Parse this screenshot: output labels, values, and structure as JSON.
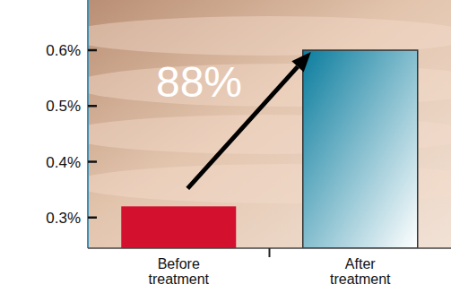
{
  "chart_data": {
    "type": "bar",
    "categories": [
      "Before treatment",
      "After treatment"
    ],
    "values": [
      0.32,
      0.6
    ],
    "colors": [
      "#d4102f",
      "#0b7d9e"
    ],
    "ylim": [
      0.245,
      0.69
    ],
    "yticks": [
      {
        "value": 0.3,
        "label": "0.3%"
      },
      {
        "value": 0.4,
        "label": "0.4%"
      },
      {
        "value": 0.5,
        "label": "0.5%"
      },
      {
        "value": 0.6,
        "label": "0.6%"
      }
    ],
    "annotation": "88%"
  }
}
